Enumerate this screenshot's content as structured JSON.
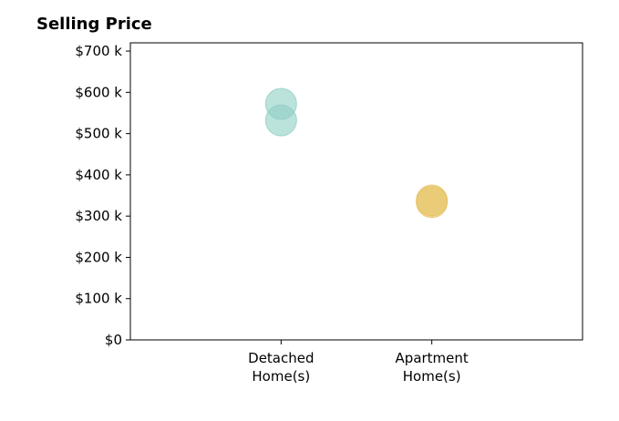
{
  "chart_data": {
    "type": "scatter",
    "title": "Selling Price",
    "xlabel": "",
    "ylabel": "",
    "categories": [
      [
        "Detached",
        "Home(s)"
      ],
      [
        "Apartment",
        "Home(s)"
      ]
    ],
    "y_ticks": [
      {
        "value": 0,
        "label": "$0"
      },
      {
        "value": 100000,
        "label": "$100 k"
      },
      {
        "value": 200000,
        "label": "$200 k"
      },
      {
        "value": 300000,
        "label": "$300 k"
      },
      {
        "value": 400000,
        "label": "$400 k"
      },
      {
        "value": 500000,
        "label": "$500 k"
      },
      {
        "value": 600000,
        "label": "$600 k"
      },
      {
        "value": 700000,
        "label": "$700 k"
      }
    ],
    "ylim": [
      0,
      720000
    ],
    "xlim": [
      -1,
      2
    ],
    "grid": false,
    "points": [
      {
        "category_index": 0,
        "value": 572000,
        "color": "#8fcfc4"
      },
      {
        "category_index": 0,
        "value": 532000,
        "color": "#8fcfc4"
      },
      {
        "category_index": 1,
        "value": 338000,
        "color": "#e6c15f"
      },
      {
        "category_index": 1,
        "value": 334000,
        "color": "#e6c15f"
      }
    ]
  }
}
